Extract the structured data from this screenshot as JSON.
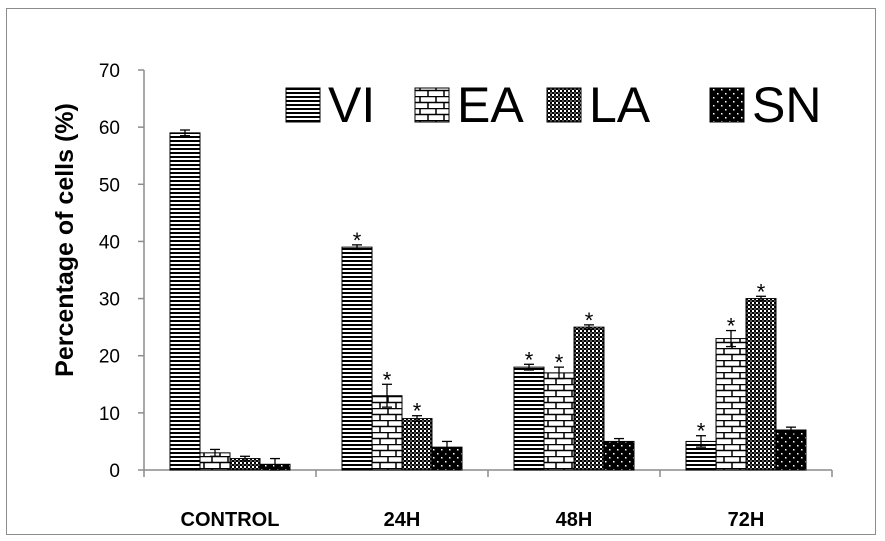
{
  "chart_data": {
    "type": "bar",
    "ylabel": "Percentage of cells (%)",
    "ylim": [
      0,
      70
    ],
    "yticks": [
      0,
      10,
      20,
      30,
      40,
      50,
      60,
      70
    ],
    "grid": false,
    "legend_position": "top-right",
    "categories": [
      "CONTROL",
      "24H",
      "48H",
      "72H"
    ],
    "series": [
      {
        "name": "VI",
        "pattern": "horizontal-lines",
        "values": [
          59,
          39,
          18,
          5
        ],
        "errors": [
          0.5,
          0.4,
          0.5,
          1.0
        ],
        "significant": [
          false,
          true,
          true,
          true
        ]
      },
      {
        "name": "EA",
        "pattern": "brick",
        "values": [
          3,
          13,
          17,
          23
        ],
        "errors": [
          0.6,
          2.0,
          1.0,
          1.4
        ],
        "significant": [
          false,
          true,
          true,
          true
        ]
      },
      {
        "name": "LA",
        "pattern": "checker",
        "values": [
          2,
          9,
          25,
          30
        ],
        "errors": [
          0.4,
          0.5,
          0.4,
          0.4
        ],
        "significant": [
          false,
          true,
          true,
          true
        ]
      },
      {
        "name": "SN",
        "pattern": "dots",
        "values": [
          1,
          4,
          5,
          7
        ],
        "errors": [
          1.0,
          1.0,
          0.5,
          0.5
        ],
        "significant": [
          false,
          false,
          false,
          false
        ]
      }
    ],
    "significance_marker": "*"
  },
  "colors": {
    "axis": "#8c8c8c",
    "bar_stroke": "#000000",
    "frame": "#8c8c8c"
  }
}
